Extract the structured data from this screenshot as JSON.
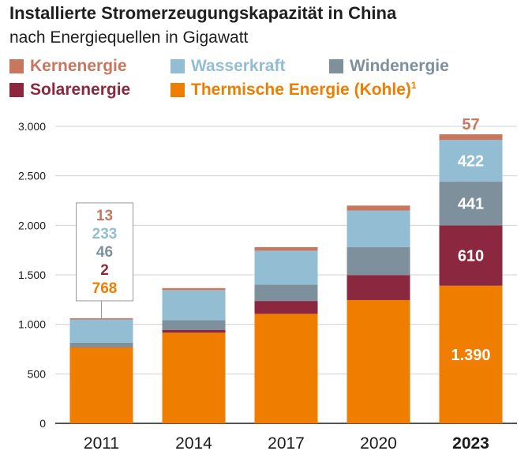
{
  "title": "Installierte Stromerzeugungskapazität in China",
  "subtitle": "nach Energiequellen in Gigawatt",
  "colors": {
    "kernenergie": "#c8775f",
    "wasserkraft": "#92bdd3",
    "windenergie": "#7d909c",
    "solarenergie": "#8b2840",
    "kohle": "#ef7d00",
    "gridline": "#d0d0d0",
    "axis": "#1a1a1a"
  },
  "legend": [
    {
      "key": "kernenergie",
      "label": "Kernenergie",
      "sup": ""
    },
    {
      "key": "wasserkraft",
      "label": "Wasserkraft",
      "sup": ""
    },
    {
      "key": "windenergie",
      "label": "Windenergie",
      "sup": ""
    },
    {
      "key": "solarenergie",
      "label": "Solarenergie",
      "sup": ""
    },
    {
      "key": "kohle",
      "label": "Thermische Energie (Kohle)",
      "sup": "1"
    }
  ],
  "chart_data": {
    "type": "bar",
    "stacked": true,
    "categories": [
      "2011",
      "2014",
      "2017",
      "2020",
      "2023"
    ],
    "highlight_category": "2023",
    "series": [
      {
        "key": "kohle",
        "name": "Thermische Energie (Kohle)",
        "values": [
          768,
          916,
          1106,
          1245,
          1390
        ]
      },
      {
        "key": "solarenergie",
        "name": "Solarenergie",
        "values": [
          2,
          28,
          130,
          253,
          610
        ]
      },
      {
        "key": "windenergie",
        "name": "Windenergie",
        "values": [
          46,
          97,
          164,
          282,
          441
        ]
      },
      {
        "key": "wasserkraft",
        "name": "Wasserkraft",
        "values": [
          233,
          305,
          344,
          370,
          422
        ]
      },
      {
        "key": "kernenergie",
        "name": "Kernenergie",
        "values": [
          13,
          20,
          36,
          50,
          57
        ]
      }
    ],
    "yticks": [
      0,
      500,
      1000,
      1500,
      2000,
      2500,
      3000
    ],
    "ytick_labels": [
      "0",
      "500",
      "1.000",
      "1.500",
      "2.000",
      "2.500",
      "3.000"
    ],
    "ylim": [
      0,
      3000
    ],
    "grid": true,
    "callout_2011": {
      "category": "2011",
      "entries": [
        {
          "key": "kernenergie",
          "label": "13"
        },
        {
          "key": "wasserkraft",
          "label": "233"
        },
        {
          "key": "windenergie",
          "label": "46"
        },
        {
          "key": "solarenergie",
          "label": "2"
        },
        {
          "key": "kohle",
          "label": "768"
        }
      ]
    },
    "labels_2023": [
      {
        "key": "kernenergie",
        "label": "57",
        "position": "above"
      },
      {
        "key": "wasserkraft",
        "label": "422",
        "position": "inside"
      },
      {
        "key": "windenergie",
        "label": "441",
        "position": "inside"
      },
      {
        "key": "solarenergie",
        "label": "610",
        "position": "inside"
      },
      {
        "key": "kohle",
        "label": "1.390",
        "position": "inside"
      }
    ]
  }
}
